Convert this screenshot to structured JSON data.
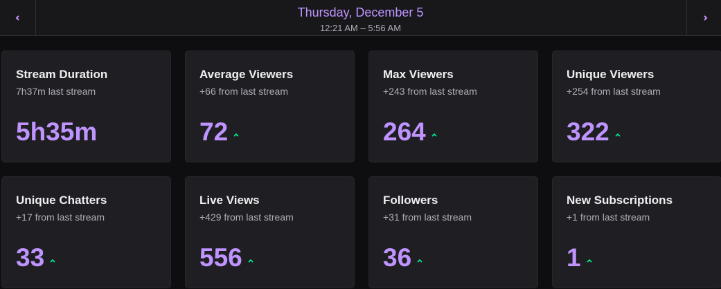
{
  "header": {
    "title": "Thursday, December 5",
    "subtitle": "12:21 AM – 5:56 AM"
  },
  "cards": [
    {
      "title": "Stream Duration",
      "comparison": "7h37m last stream",
      "value": "5h35m"
    },
    {
      "title": "Average Viewers",
      "comparison": "+66 from last stream",
      "value": "72"
    },
    {
      "title": "Max Viewers",
      "comparison": "+243 from last stream",
      "value": "264"
    },
    {
      "title": "Unique Viewers",
      "comparison": "+254 from last stream",
      "value": "322"
    },
    {
      "title": "Unique Chatters",
      "comparison": "+17 from last stream",
      "value": "33"
    },
    {
      "title": "Live Views",
      "comparison": "+429 from last stream",
      "value": "556"
    },
    {
      "title": "Followers",
      "comparison": "+31 from last stream",
      "value": "36"
    },
    {
      "title": "New Subscriptions",
      "comparison": "+1 from last stream",
      "value": "1"
    }
  ]
}
